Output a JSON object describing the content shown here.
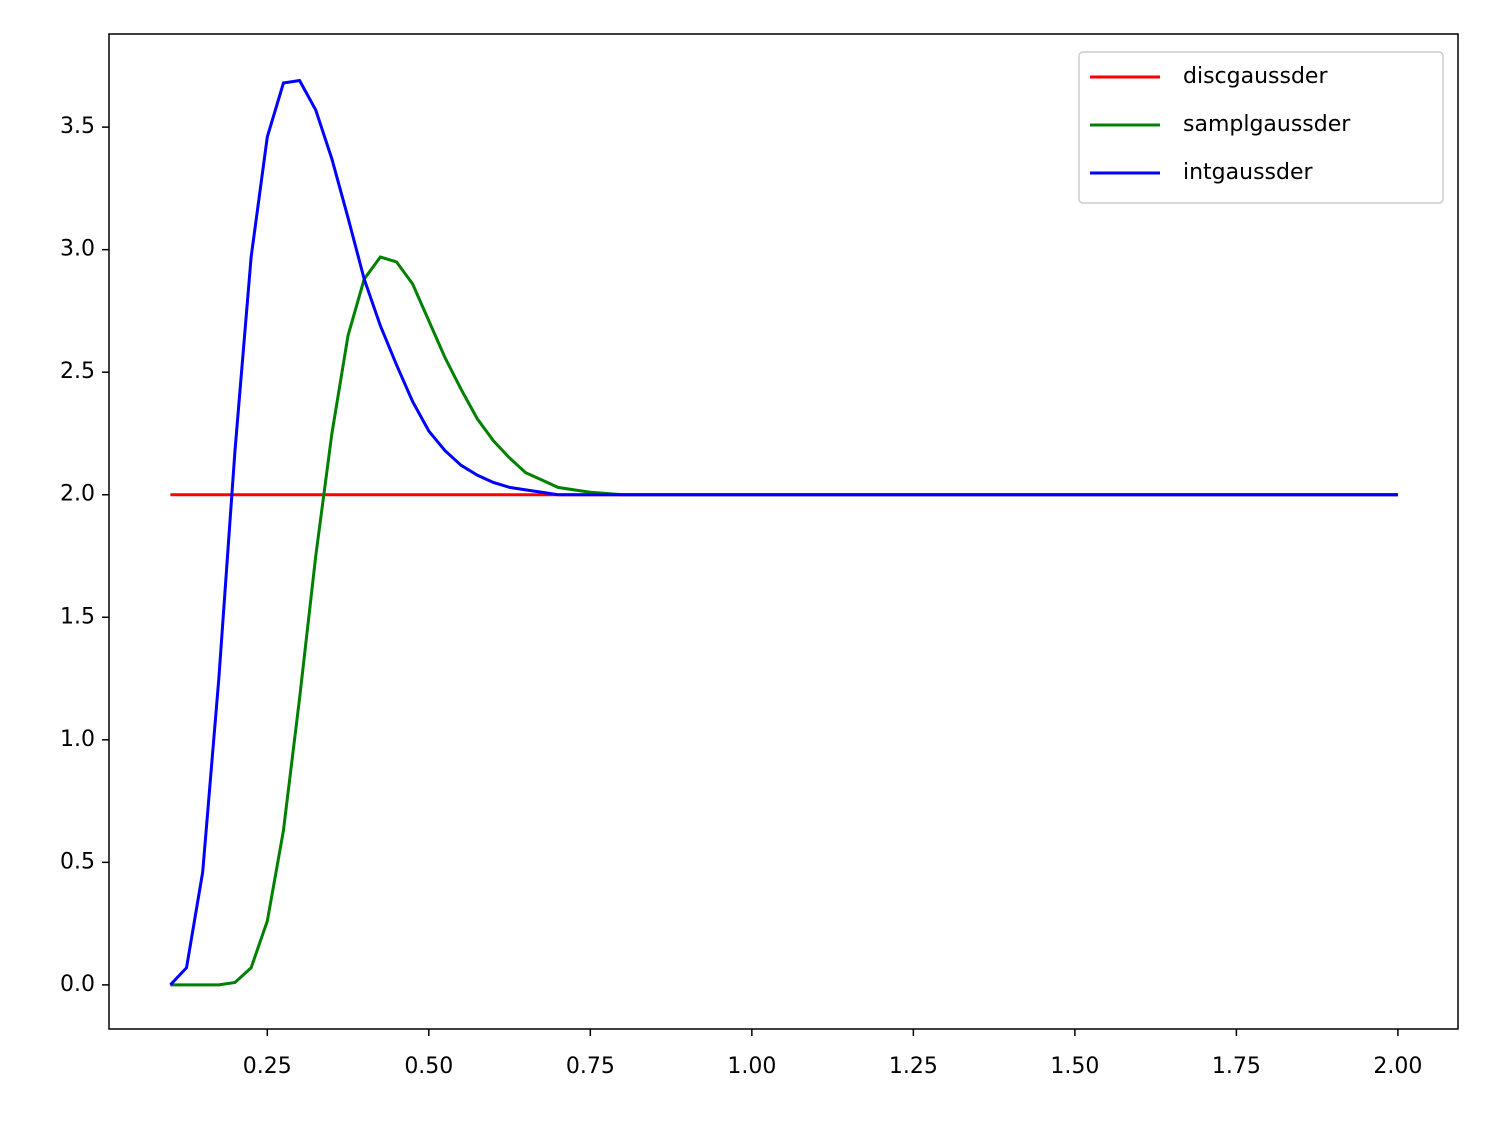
{
  "chart_data": {
    "type": "line",
    "x": [
      0.1,
      0.125,
      0.15,
      0.175,
      0.2,
      0.225,
      0.25,
      0.275,
      0.3,
      0.325,
      0.35,
      0.375,
      0.4,
      0.425,
      0.45,
      0.475,
      0.5,
      0.525,
      0.55,
      0.575,
      0.6,
      0.625,
      0.65,
      0.675,
      0.7,
      0.725,
      0.75,
      0.775,
      0.8,
      0.825,
      0.85,
      0.875,
      0.9,
      0.925,
      0.95,
      0.975,
      1.0,
      1.025,
      1.05,
      1.075,
      1.1,
      1.125,
      1.15,
      1.175,
      1.2,
      1.225,
      1.25,
      1.275,
      1.3,
      1.325,
      1.35,
      1.375,
      1.4,
      1.425,
      1.45,
      1.475,
      1.5,
      1.525,
      1.55,
      1.575,
      1.6,
      1.625,
      1.65,
      1.675,
      1.7,
      1.725,
      1.75,
      1.775,
      1.8,
      1.825,
      1.85,
      1.875,
      1.9,
      1.925,
      1.95,
      1.975,
      2.0
    ],
    "series": [
      {
        "name": "discgaussder",
        "color": "#ff0000",
        "values": [
          2,
          2,
          2,
          2,
          2,
          2,
          2,
          2,
          2,
          2,
          2,
          2,
          2,
          2,
          2,
          2,
          2,
          2,
          2,
          2,
          2,
          2,
          2,
          2,
          2,
          2,
          2,
          2,
          2,
          2,
          2,
          2,
          2,
          2,
          2,
          2,
          2,
          2,
          2,
          2,
          2,
          2,
          2,
          2,
          2,
          2,
          2,
          2,
          2,
          2,
          2,
          2,
          2,
          2,
          2,
          2,
          2,
          2,
          2,
          2,
          2,
          2,
          2,
          2,
          2,
          2,
          2,
          2,
          2,
          2,
          2,
          2,
          2,
          2,
          2,
          2,
          2
        ]
      },
      {
        "name": "samplgaussder",
        "color": "#008000",
        "values": [
          0,
          0,
          0,
          0,
          0.01,
          0.07,
          0.26,
          0.63,
          1.17,
          1.75,
          2.25,
          2.65,
          2.88,
          2.97,
          2.95,
          2.86,
          2.71,
          2.56,
          2.43,
          2.31,
          2.22,
          2.15,
          2.09,
          2.06,
          2.03,
          2.02,
          2.01,
          2.005,
          2,
          2,
          2,
          2,
          2,
          2,
          2,
          2,
          2,
          2,
          2,
          2,
          2,
          2,
          2,
          2,
          2,
          2,
          2,
          2,
          2,
          2,
          2,
          2,
          2,
          2,
          2,
          2,
          2,
          2,
          2,
          2,
          2,
          2,
          2,
          2,
          2,
          2,
          2,
          2,
          2,
          2,
          2,
          2,
          2,
          2,
          2,
          2,
          2
        ]
      },
      {
        "name": "intgaussder",
        "color": "#0000ff",
        "values": [
          0,
          0.07,
          0.46,
          1.25,
          2.18,
          2.97,
          3.46,
          3.68,
          3.69,
          3.57,
          3.37,
          3.13,
          2.88,
          2.69,
          2.53,
          2.38,
          2.26,
          2.18,
          2.12,
          2.08,
          2.05,
          2.03,
          2.02,
          2.01,
          2,
          2,
          2,
          2,
          2,
          2,
          2,
          2,
          2,
          2,
          2,
          2,
          2,
          2,
          2,
          2,
          2,
          2,
          2,
          2,
          2,
          2,
          2,
          2,
          2,
          2,
          2,
          2,
          2,
          2,
          2,
          2,
          2,
          2,
          2,
          2,
          2,
          2,
          2,
          2,
          2,
          2,
          2,
          2,
          2,
          2,
          2,
          2,
          2,
          2,
          2,
          2,
          2
        ]
      }
    ],
    "xlim": [
      0.005,
      2.093
    ],
    "ylim": [
      -0.18,
      3.88
    ],
    "xticks": [
      0.25,
      {
        "value": 0.5,
        "label": "0.50"
      },
      0.75,
      {
        "value": 1.0,
        "label": "1.00"
      },
      1.25,
      {
        "value": 1.5,
        "label": "1.50"
      },
      1.75,
      {
        "value": 2.0,
        "label": "2.00"
      }
    ],
    "yticks": [
      {
        "value": 0,
        "label": "0.0"
      },
      0.5,
      {
        "value": 1,
        "label": "1.0"
      },
      1.5,
      {
        "value": 2,
        "label": "2.0"
      },
      2.5,
      {
        "value": 3,
        "label": "3.0"
      },
      3.5
    ],
    "legend": "upper right"
  }
}
